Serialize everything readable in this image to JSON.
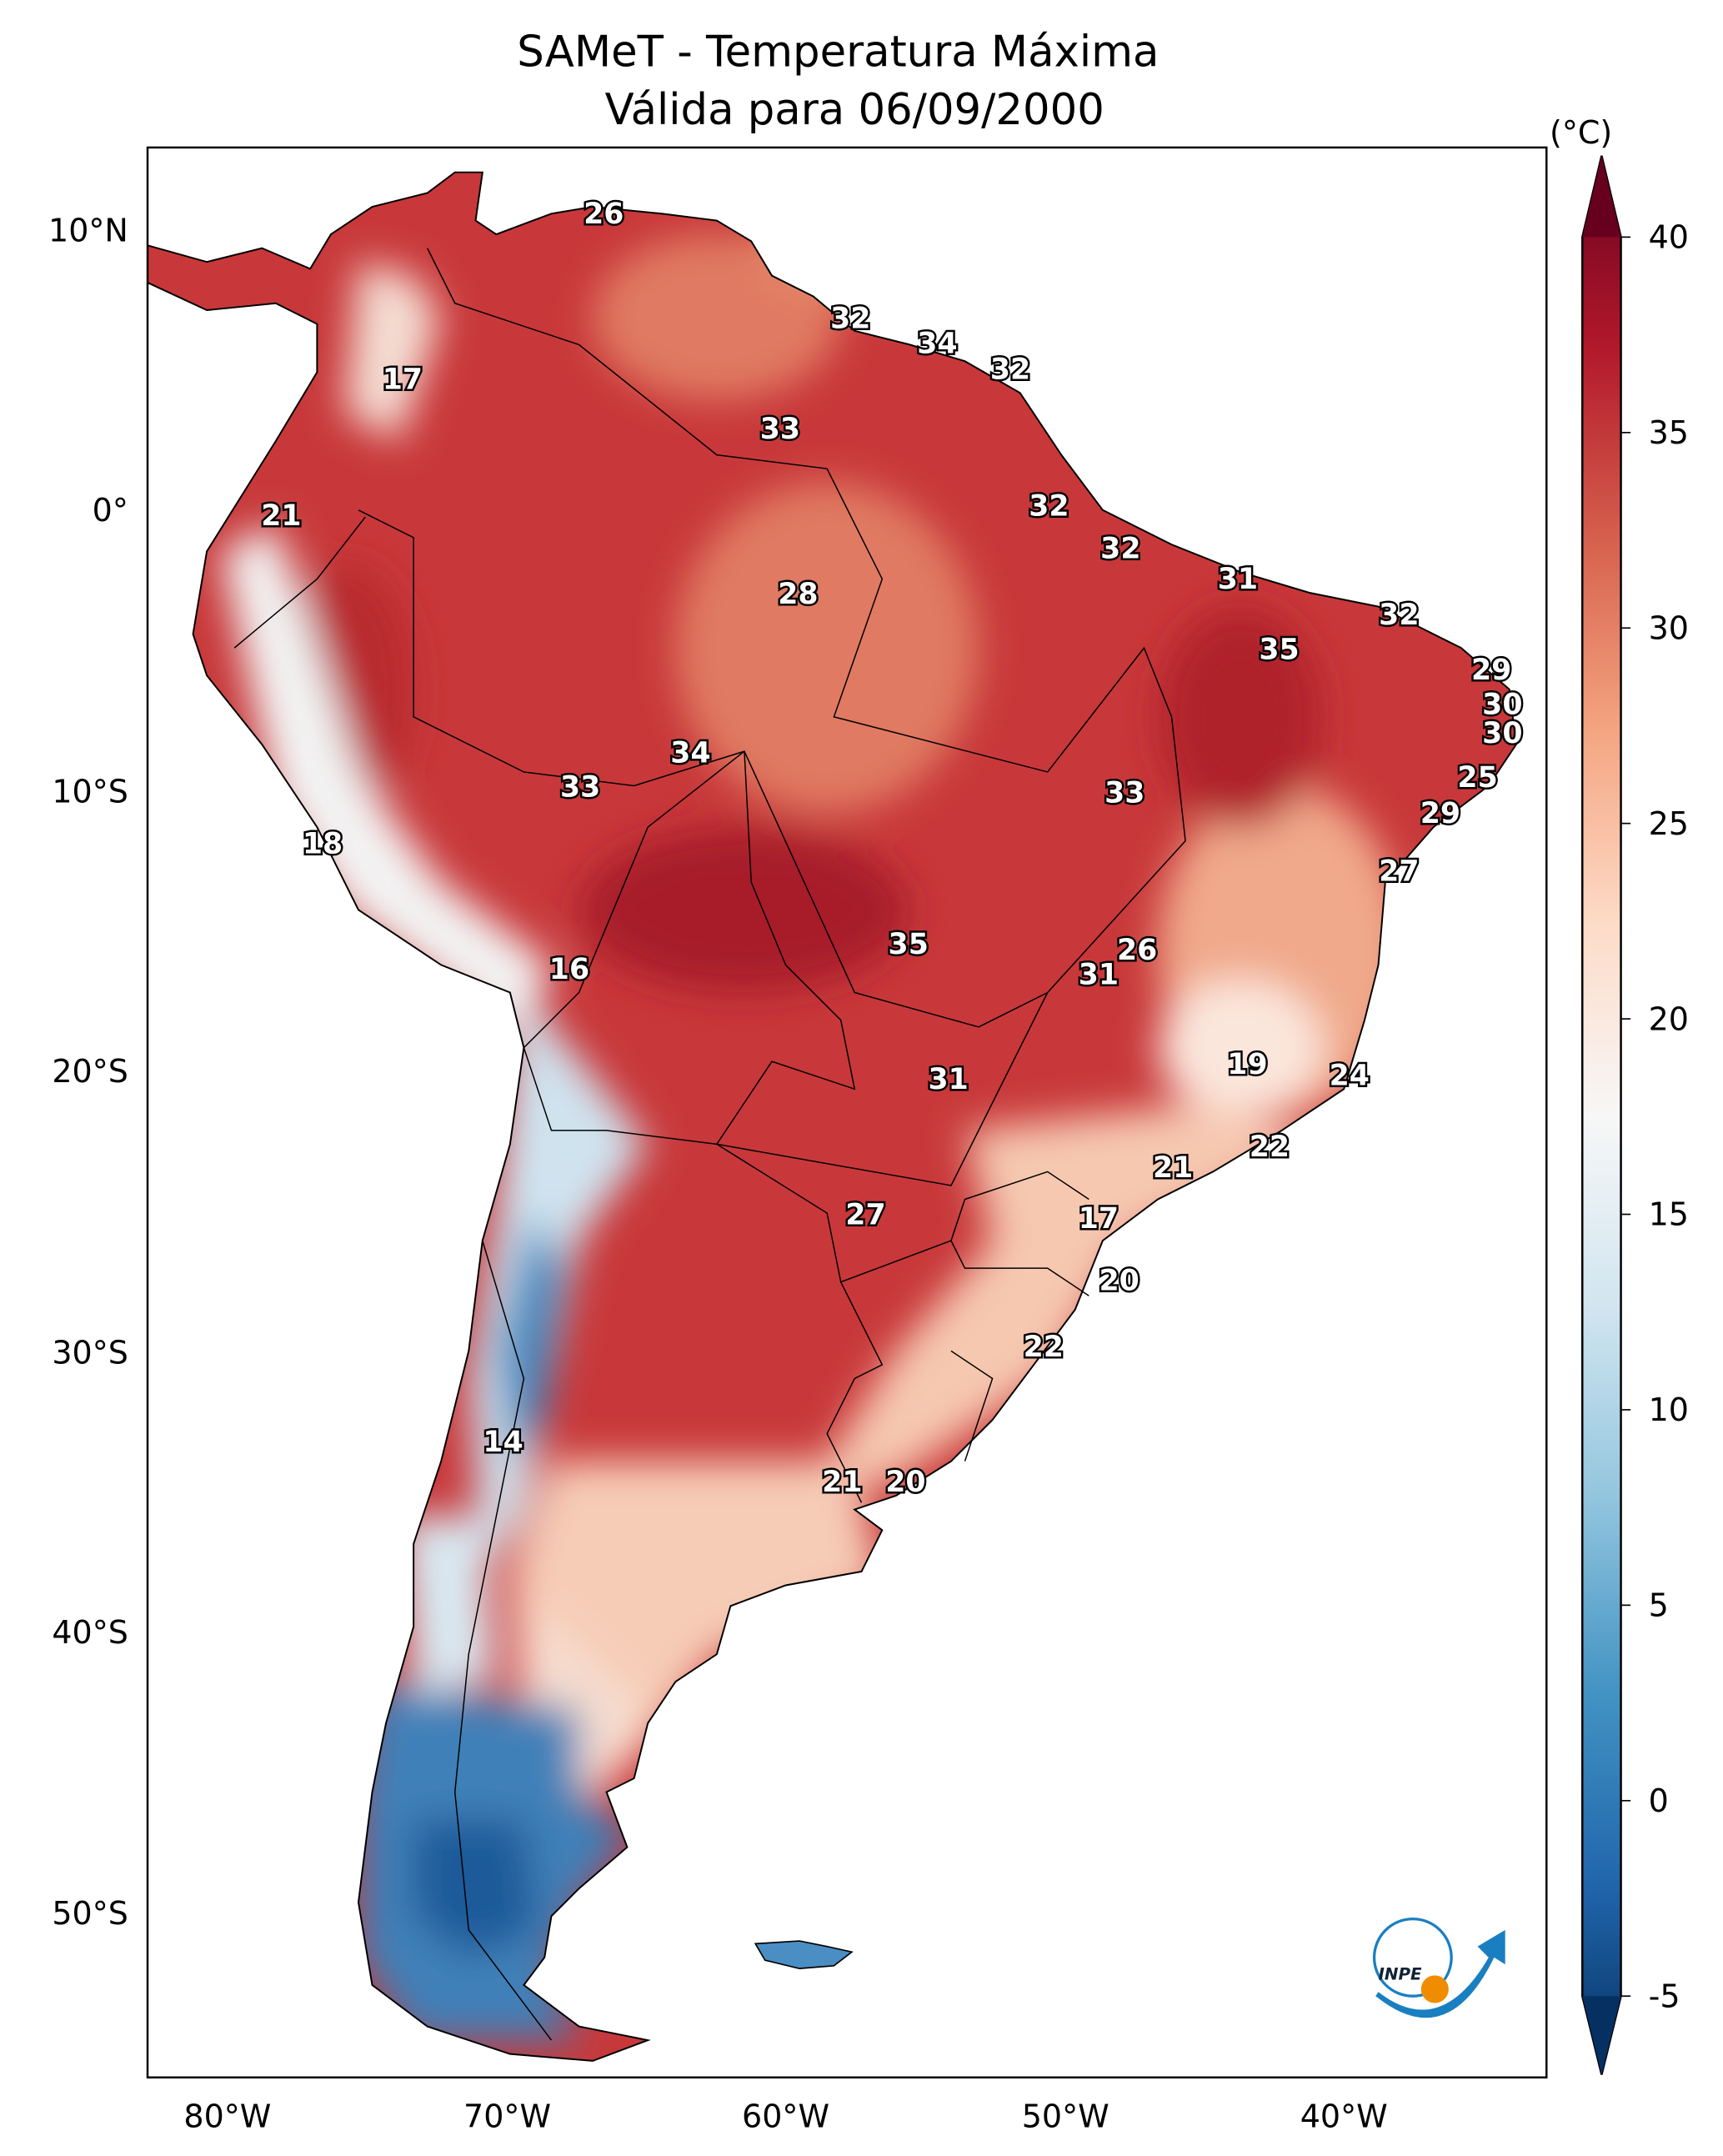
{
  "title": {
    "line1": "SAMeT - Temperatura Máxima",
    "line2": "Válida para 06/09/2000"
  },
  "map": {
    "lat_ticks": [
      "10°N",
      "0°",
      "10°S",
      "20°S",
      "30°S",
      "40°S",
      "50°S"
    ],
    "lon_ticks": [
      "80°W",
      "70°W",
      "60°W",
      "50°W",
      "40°W"
    ],
    "contour_labels": [
      "26",
      "32",
      "34",
      "32",
      "17",
      "33",
      "21",
      "32",
      "32",
      "31",
      "28",
      "32",
      "35",
      "29",
      "30",
      "30",
      "34",
      "33",
      "33",
      "25",
      "29",
      "18",
      "27",
      "26",
      "35",
      "16",
      "31",
      "19",
      "24",
      "31",
      "22",
      "21",
      "17",
      "27",
      "20",
      "22",
      "14",
      "21",
      "20"
    ]
  },
  "colorbar": {
    "unit": "(°C)",
    "ticks": [
      "40",
      "35",
      "30",
      "25",
      "20",
      "15",
      "10",
      "5",
      "0",
      "-5"
    ],
    "range": [
      -5,
      40
    ],
    "extend": "both",
    "colormap": [
      "#053061",
      "#2166ac",
      "#4393c3",
      "#92c5de",
      "#d1e5f0",
      "#f7f7f7",
      "#fddbc7",
      "#f4a582",
      "#d6604d",
      "#b2182b",
      "#67001f"
    ]
  },
  "logo": {
    "text": "INPE"
  }
}
